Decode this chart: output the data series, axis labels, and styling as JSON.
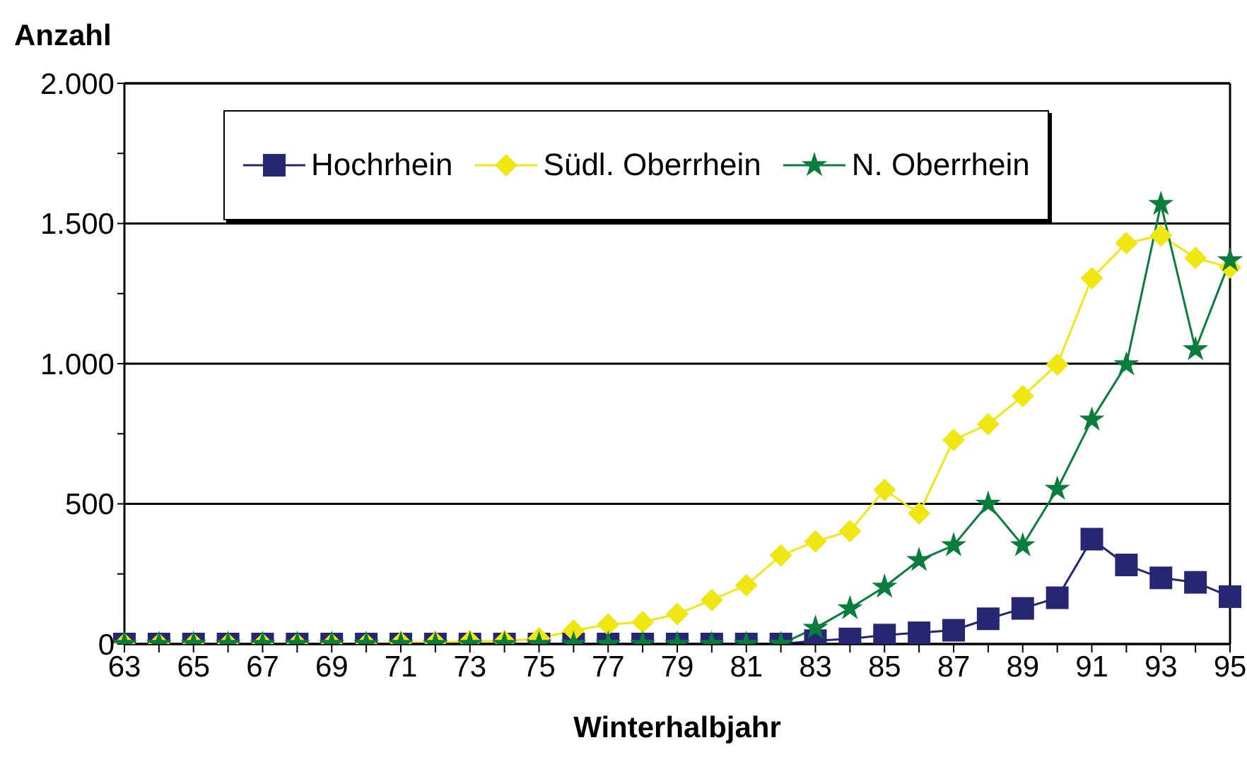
{
  "chart_data": {
    "type": "line",
    "xlabel": "Winterhalbjahr",
    "ylabel": "Anzahl",
    "categories": [
      "63",
      null,
      "65",
      null,
      "67",
      null,
      "69",
      null,
      "71",
      null,
      "73",
      null,
      "75",
      null,
      "77",
      null,
      "79",
      null,
      "81",
      null,
      "83",
      null,
      "85",
      null,
      "87",
      null,
      "89",
      null,
      "91",
      null,
      "93",
      null,
      "95"
    ],
    "series": [
      {
        "name": "Hochrhein",
        "color": "#262673",
        "marker": "square",
        "values": [
          0,
          0,
          0,
          0,
          0,
          0,
          0,
          0,
          0,
          0,
          0,
          0,
          0,
          0,
          0,
          0,
          0,
          0,
          0,
          0,
          12,
          18,
          32,
          40,
          49,
          90,
          127,
          165,
          374,
          282,
          236,
          220,
          169
        ]
      },
      {
        "name": "Südl. Oberrhein",
        "color": "#f0e614",
        "marker": "diamond",
        "values": [
          0,
          0,
          0,
          0,
          0,
          0,
          0,
          0,
          5,
          5,
          10,
          10,
          20,
          48,
          70,
          78,
          107,
          157,
          210,
          316,
          366,
          403,
          550,
          466,
          728,
          784,
          884,
          997,
          1305,
          1430,
          1457,
          1377,
          1343
        ]
      },
      {
        "name": "N. Oberrhein",
        "color": "#0a7d3c",
        "marker": "star",
        "values": [
          0,
          0,
          0,
          0,
          0,
          0,
          0,
          0,
          0,
          0,
          0,
          0,
          0,
          0,
          0,
          0,
          0,
          0,
          0,
          0,
          57,
          127,
          204,
          299,
          352,
          500,
          352,
          553,
          800,
          997,
          1569,
          1051,
          1368
        ]
      }
    ],
    "ylim": [
      0,
      2000
    ],
    "yticks": [
      {
        "value": 0,
        "label": "0"
      },
      {
        "value": 250,
        "label": null
      },
      {
        "value": 500,
        "label": "500"
      },
      {
        "value": 750,
        "label": null
      },
      {
        "value": 1000,
        "label": "1.000"
      },
      {
        "value": 1250,
        "label": null
      },
      {
        "value": 1500,
        "label": "1.500"
      },
      {
        "value": 1750,
        "label": null
      },
      {
        "value": 2000,
        "label": "2.000"
      }
    ],
    "grid": "y",
    "legend": "top",
    "line_style": "solid"
  }
}
